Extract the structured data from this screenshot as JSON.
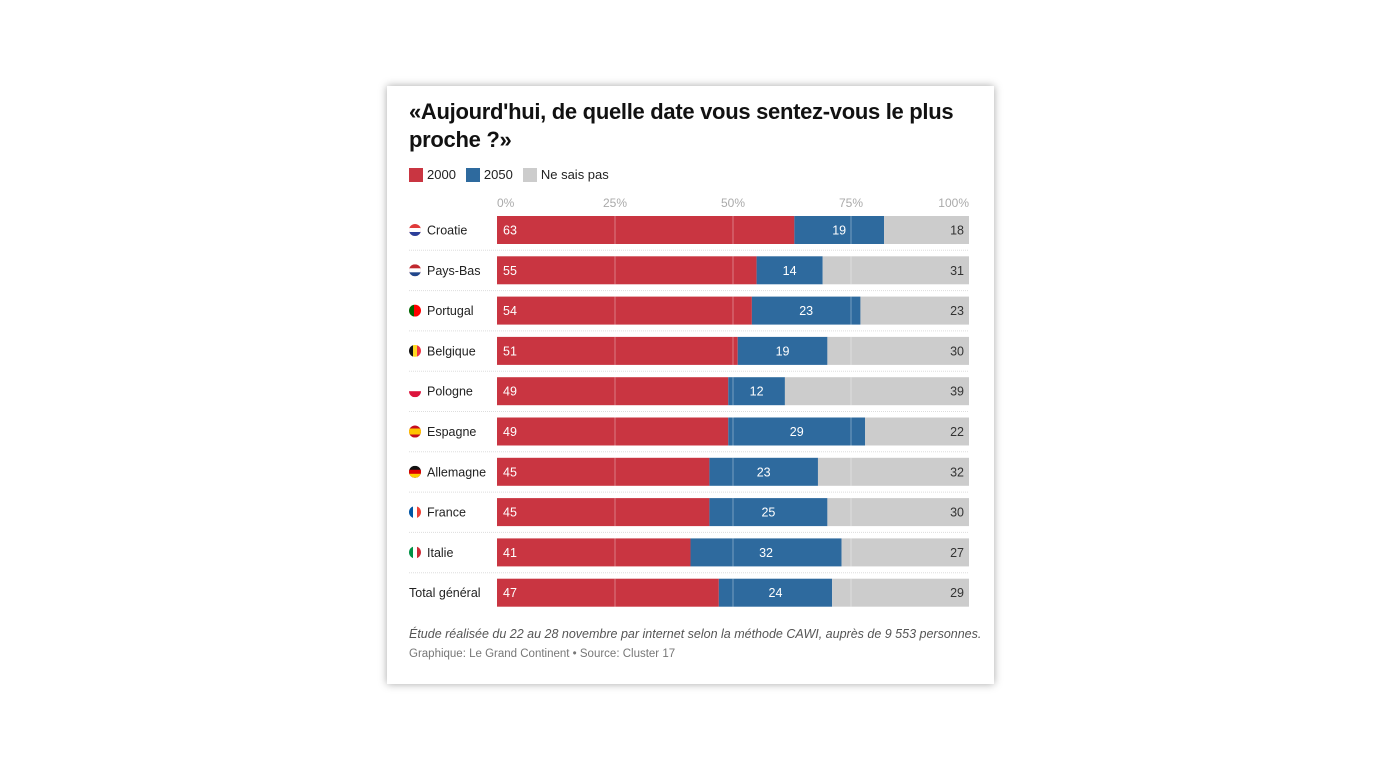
{
  "chart_data": {
    "type": "bar",
    "orientation": "horizontal",
    "stacked": true,
    "title": "«Aujourd'hui, de quelle date vous sentez-vous le plus proche ?»",
    "categories": [
      "Croatie",
      "Pays-Bas",
      "Portugal",
      "Belgique",
      "Pologne",
      "Espagne",
      "Allemagne",
      "France",
      "Italie",
      "Total général"
    ],
    "series": [
      {
        "name": "2000",
        "color": "#c93541",
        "values": [
          63,
          55,
          54,
          51,
          49,
          49,
          45,
          45,
          41,
          47
        ]
      },
      {
        "name": "2050",
        "color": "#2e6a9e",
        "values": [
          19,
          14,
          23,
          19,
          12,
          29,
          23,
          25,
          32,
          24
        ]
      },
      {
        "name": "Ne sais pas",
        "color": "#cccccc",
        "values": [
          18,
          31,
          23,
          30,
          39,
          22,
          32,
          30,
          27,
          29
        ]
      }
    ],
    "xlim": [
      0,
      100
    ],
    "x_ticks": [
      "0%",
      "25%",
      "50%",
      "75%",
      "100%"
    ],
    "grid": true,
    "legend": "top-left",
    "flags": [
      "croatia",
      "netherlands",
      "portugal",
      "belgium",
      "poland",
      "spain",
      "germany",
      "france",
      "italy",
      null
    ]
  },
  "footer": {
    "note": "Étude réalisée du 22 au 28 novembre par internet selon la méthode CAWI, auprès de 9 553 personnes.",
    "credit": "Graphique: Le Grand Continent • Source: Cluster 17"
  }
}
